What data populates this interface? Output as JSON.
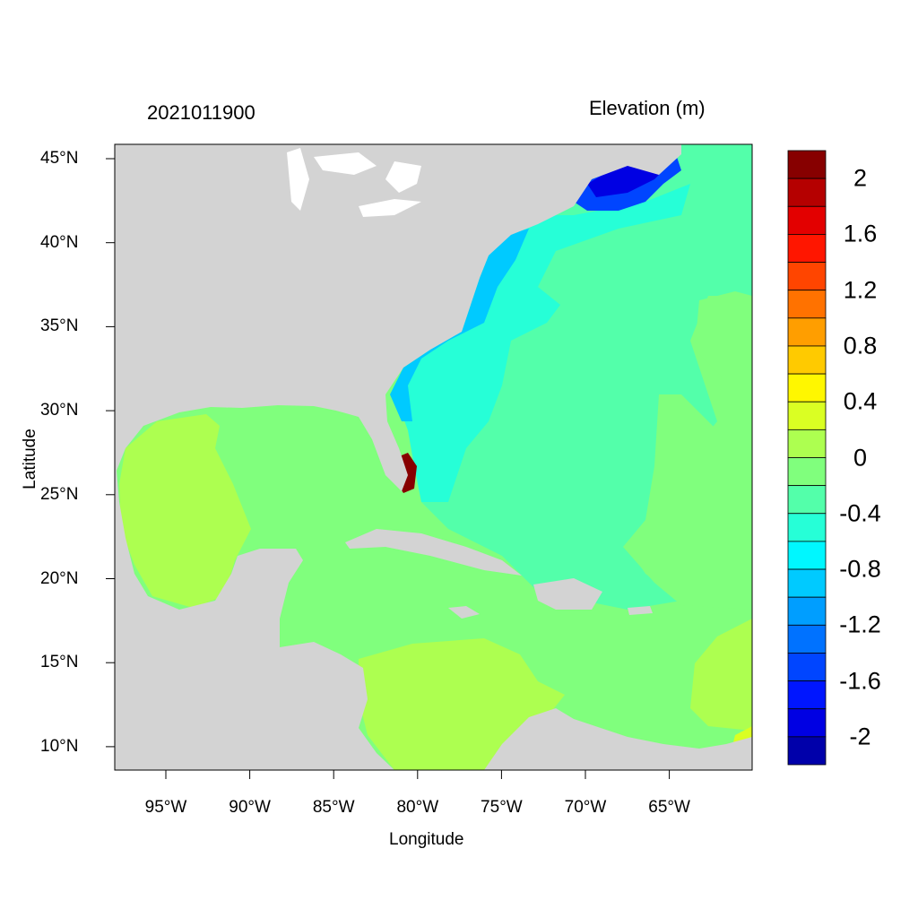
{
  "title_left": "2021011900",
  "title_right": "Elevation (m)",
  "xlabel": "Longitude",
  "ylabel": "Latitude",
  "x_ticks": [
    "95°W",
    "90°W",
    "85°W",
    "80°W",
    "75°W",
    "70°W",
    "65°W"
  ],
  "y_ticks": [
    "45°N",
    "40°N",
    "35°N",
    "30°N",
    "25°N",
    "20°N",
    "15°N",
    "10°N"
  ],
  "colorbar": {
    "labels": [
      "2",
      "1.6",
      "1.2",
      "0.8",
      "0.4",
      "0",
      "-0.4",
      "-0.8",
      "-1.2",
      "-1.6",
      "-2"
    ],
    "levels_range": [
      -2.2,
      2.2
    ],
    "step": 0.2,
    "colors": [
      "#870000",
      "#B50000",
      "#E30000",
      "#FF1600",
      "#FF4500",
      "#FF7200",
      "#FF9E00",
      "#FFCA00",
      "#FFF700",
      "#DAFF23",
      "#ADFF50",
      "#80FF7D",
      "#53FFAA",
      "#26FFD7",
      "#00F7FF",
      "#00CAFF",
      "#009EFF",
      "#0072FF",
      "#0045FF",
      "#0016FF",
      "#0000E3",
      "#0000AA"
    ]
  },
  "map_extent": {
    "lon": [
      -98,
      -60
    ],
    "lat": [
      8.6,
      45.8
    ]
  },
  "land_color": "#D3D3D3"
}
